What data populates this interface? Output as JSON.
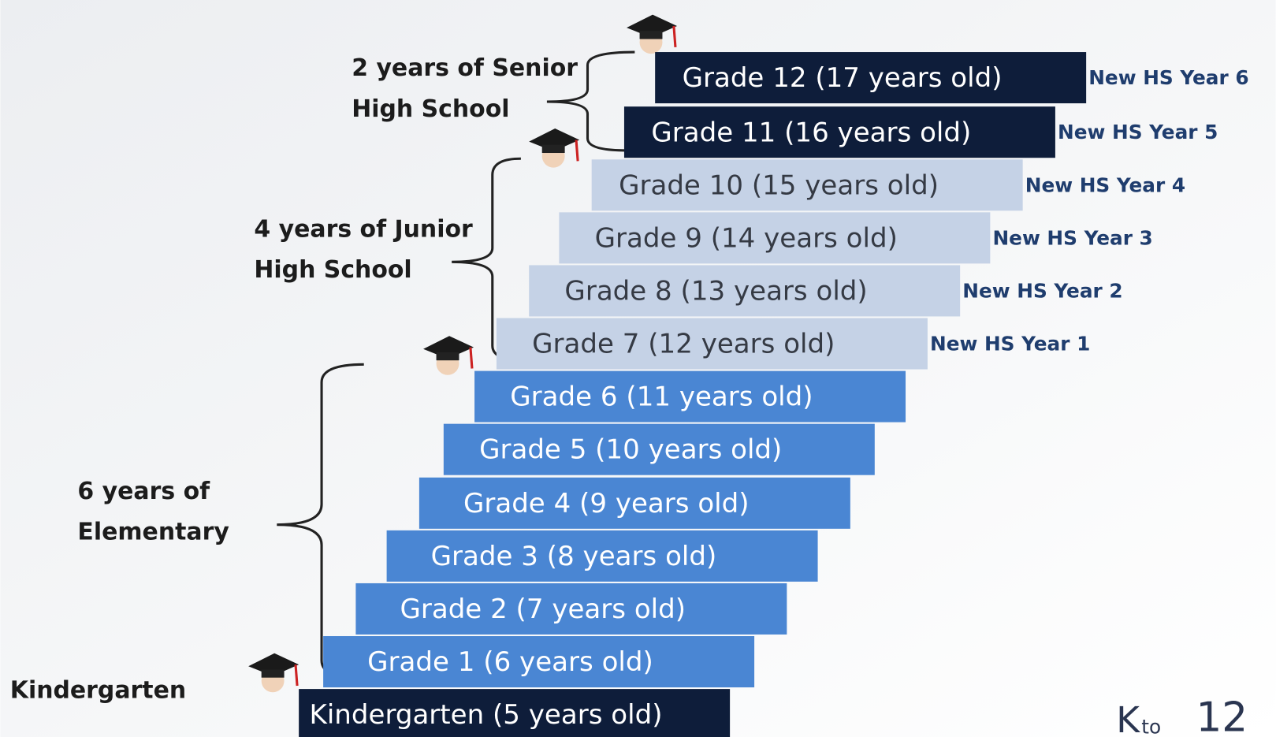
{
  "steps": [
    {
      "label": "Grade 12 (17 years old)",
      "new_hs": "New HS Year 6"
    },
    {
      "label": "Grade 11 (16 years old)",
      "new_hs": "New HS Year 5"
    },
    {
      "label": "Grade 10 (15 years old)",
      "new_hs": "New HS Year 4"
    },
    {
      "label": "Grade 9 (14 years old)",
      "new_hs": "New HS Year 3"
    },
    {
      "label": "Grade 8 (13 years old)",
      "new_hs": "New HS Year 2"
    },
    {
      "label": "Grade 7 (12 years old)",
      "new_hs": "New HS Year 1"
    },
    {
      "label": "Grade 6 (11 years old)"
    },
    {
      "label": "Grade 5 (10 years old)"
    },
    {
      "label": "Grade 4 (9 years old)"
    },
    {
      "label": "Grade 3 (8 years old)"
    },
    {
      "label": "Grade 2 (7 years old)"
    },
    {
      "label": "Grade 1 (6 years old)"
    },
    {
      "label": "Kindergarten (5 years old)"
    }
  ],
  "groups": [
    {
      "lines": [
        "2 years of Senior",
        "High School"
      ]
    },
    {
      "lines": [
        "4 years of Junior",
        "High School"
      ]
    },
    {
      "lines": [
        "6 years of",
        "Elementary"
      ]
    },
    {
      "lines": [
        "Kindergarten"
      ]
    }
  ],
  "logo": {
    "k": "K",
    "to": "to",
    "num": "12"
  }
}
